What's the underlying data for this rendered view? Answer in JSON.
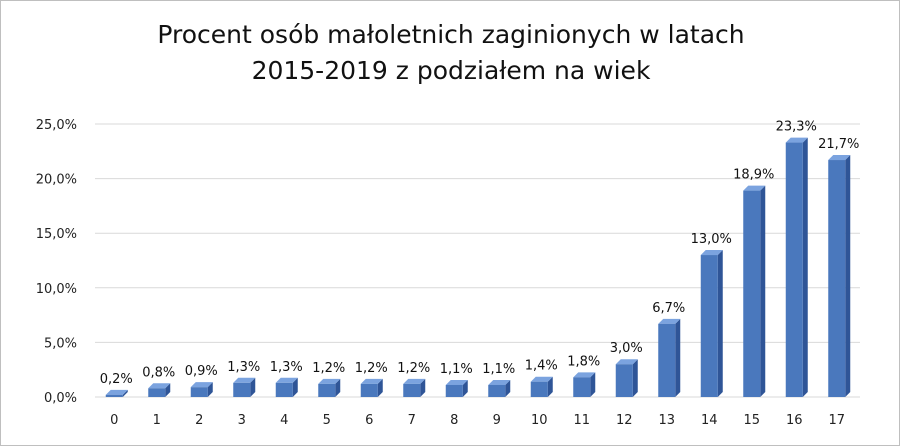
{
  "chart_data": {
    "type": "bar",
    "title_lines": [
      "Procent osób małoletnich zaginionych w latach",
      "2015-2019 z podziałem na wiek"
    ],
    "xlabel": "",
    "ylabel": "",
    "categories": [
      "0",
      "1",
      "2",
      "3",
      "4",
      "5",
      "6",
      "7",
      "8",
      "9",
      "10",
      "11",
      "12",
      "13",
      "14",
      "15",
      "16",
      "17"
    ],
    "values": [
      0.2,
      0.8,
      0.9,
      1.3,
      1.3,
      1.2,
      1.2,
      1.2,
      1.1,
      1.1,
      1.4,
      1.8,
      3.0,
      6.7,
      13.0,
      18.9,
      23.3,
      21.7
    ],
    "data_labels": [
      "0,2%",
      "0,8%",
      "0,9%",
      "1,3%",
      "1,3%",
      "1,2%",
      "1,2%",
      "1,2%",
      "1,1%",
      "1,1%",
      "1,4%",
      "1,8%",
      "3,0%",
      "6,7%",
      "13,0%",
      "18,9%",
      "23,3%",
      "21,7%"
    ],
    "y_ticks": [
      0,
      5,
      10,
      15,
      20,
      25
    ],
    "y_tick_labels": [
      "0,0%",
      "5,0%",
      "10,0%",
      "15,0%",
      "20,0%",
      "25,0%"
    ],
    "ylim": [
      0,
      25
    ],
    "grid": true,
    "legend": "none",
    "colors": {
      "bar_front": "#4a78bd",
      "bar_side": "#2f5597",
      "bar_top": "#7ba3df",
      "grid": "#d9d9d9"
    }
  }
}
